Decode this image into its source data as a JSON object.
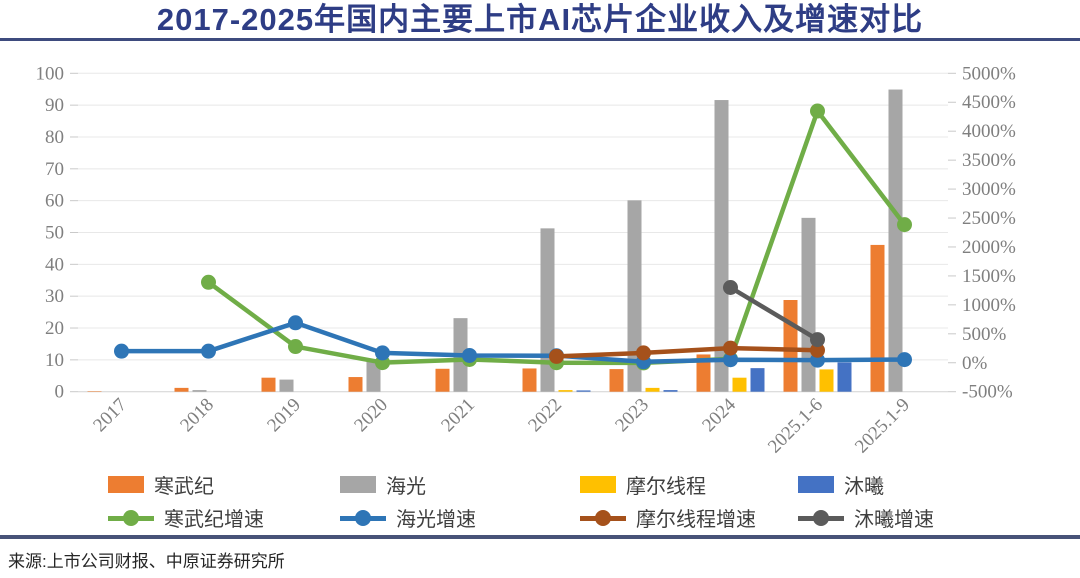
{
  "title": "2017-2025年国内主要上市AI芯片企业收入及增速对比",
  "source": "来源:上市公司财报、中原证券研究所",
  "theme": {
    "title_color": "#2e3d85",
    "divider_color": "#3e4b7e",
    "grid_color": "#e8e8e8",
    "axis_label_color": "#7f7f7f",
    "legend_text_color": "#3f3f3f"
  },
  "chart_data": {
    "type": "combo_bar_line",
    "title": "2017-2025年国内主要上市AI芯片企业收入及增速对比",
    "categories": [
      "2017",
      "2018",
      "2019",
      "2020",
      "2021",
      "2022",
      "2023",
      "2024",
      "2025.1-6",
      "2025.1-9"
    ],
    "bar_series": [
      {
        "name": "寒武纪",
        "color": "#ED7D31",
        "axis": "left",
        "values": [
          0.1,
          1.2,
          4.4,
          4.6,
          7.2,
          7.3,
          7.1,
          11.7,
          28.8,
          46.1
        ]
      },
      {
        "name": "海光",
        "color": "#A6A6A6",
        "axis": "left",
        "values": [
          null,
          0.5,
          3.8,
          10.2,
          23.1,
          51.3,
          60.1,
          91.6,
          54.6,
          94.9
        ]
      },
      {
        "name": "摩尔线程",
        "color": "#FFC000",
        "axis": "left",
        "values": [
          null,
          null,
          null,
          null,
          null,
          0.5,
          1.2,
          4.4,
          7.0,
          null
        ]
      },
      {
        "name": "沐曦",
        "color": "#4472C4",
        "axis": "left",
        "values": [
          null,
          null,
          null,
          null,
          null,
          0.4,
          0.5,
          7.4,
          9.2,
          null
        ]
      }
    ],
    "line_series": [
      {
        "name": "寒武纪增速",
        "color": "#70AD47",
        "axis": "right",
        "values": [
          null,
          1390,
          280,
          3,
          57,
          1,
          -3,
          66,
          4348,
          2386
        ]
      },
      {
        "name": "海光增速",
        "color": "#2E75B6",
        "axis": "right",
        "values": [
          200,
          200,
          690,
          170,
          126,
          122,
          17,
          52,
          45,
          55
        ]
      },
      {
        "name": "摩尔线程增速",
        "color": "#A5511B",
        "axis": "right",
        "values": [
          null,
          null,
          null,
          null,
          null,
          110,
          170,
          253,
          215,
          null
        ]
      },
      {
        "name": "沐曦增速",
        "color": "#5B5B5B",
        "axis": "right",
        "values": [
          null,
          null,
          null,
          null,
          null,
          null,
          null,
          1300,
          400,
          null
        ]
      }
    ],
    "left_axis": {
      "min": 0,
      "max": 100,
      "step": 10,
      "suffix": ""
    },
    "right_axis": {
      "min": -500,
      "max": 5000,
      "step": 500,
      "suffix": "%"
    },
    "grid": true,
    "legend_position": "bottom",
    "x_label_rotation": -45
  }
}
